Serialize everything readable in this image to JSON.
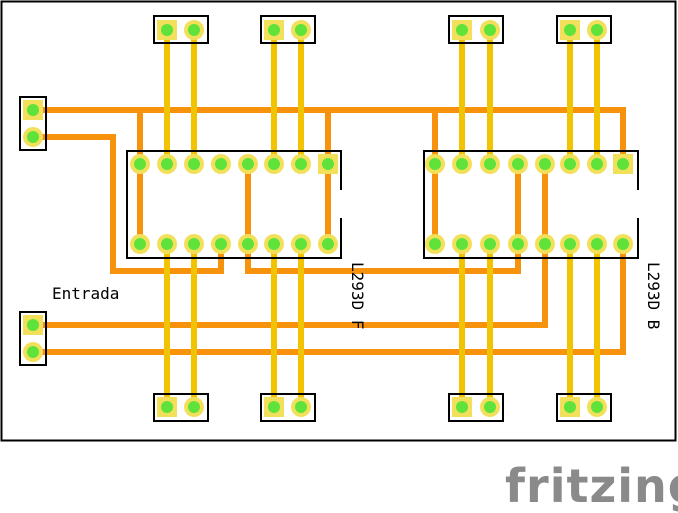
{
  "board": {
    "label_input": "Entrada",
    "chip_left_label": "L293D F",
    "chip_right_label": "L293D B",
    "brand": "fritzing"
  },
  "colors": {
    "bottom_trace": "#f7920c",
    "top_trace": "#f2c300",
    "pad_ring": "#f2e05a",
    "pad_center": "#5fe33a",
    "outline": "#000000",
    "board": "#ffffff",
    "brand": "#8a8a8a"
  },
  "icons": {
    "header": "2-pin-header-icon",
    "ic": "dip16-ic-icon",
    "logo": "fritzing-logo-icon"
  }
}
